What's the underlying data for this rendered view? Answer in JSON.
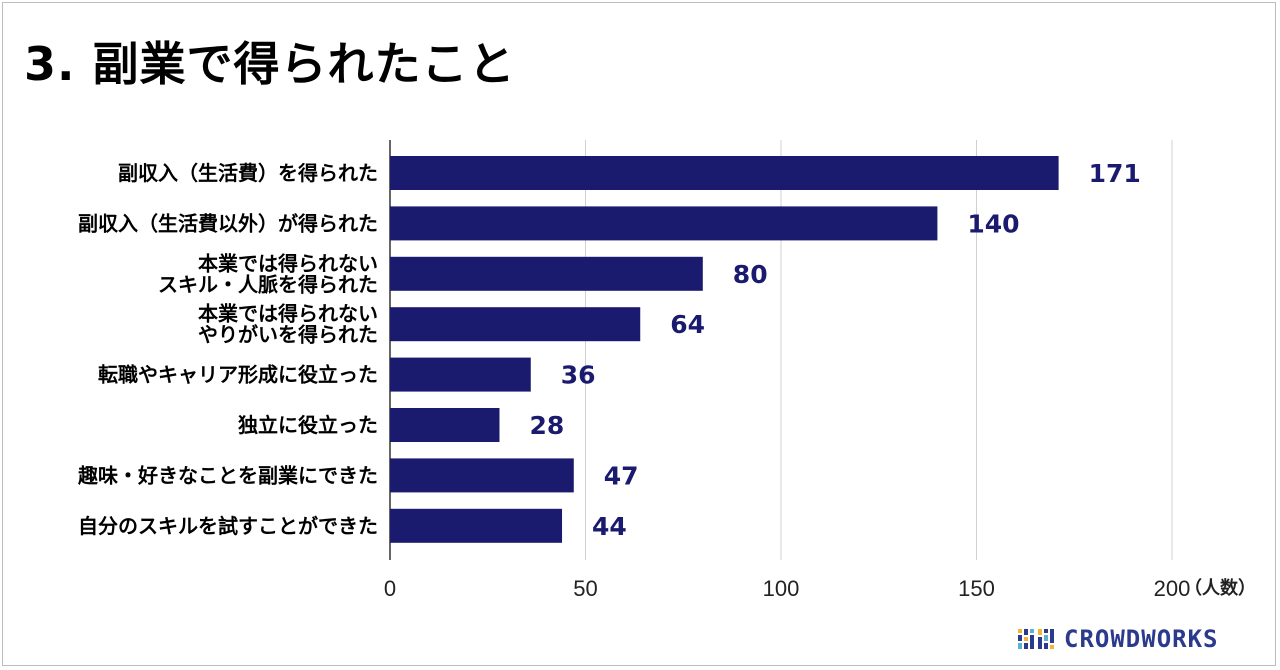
{
  "title": "3. 副業で得られたこと",
  "logo": {
    "text": "CROWDWORKS",
    "text_color": "#2b3a8c"
  },
  "colors": {
    "bar": "#1a1a6e",
    "value_label": "#1a1a6e",
    "grid": "#d0d0d0",
    "axis": "#333333"
  },
  "chart_data": {
    "type": "bar",
    "orientation": "horizontal",
    "categories": [
      [
        "副収入（生活費）を得られた"
      ],
      [
        "副収入（生活費以外）が得られた"
      ],
      [
        "本業では得られない",
        "スキル・人脈を得られた"
      ],
      [
        "本業では得られない",
        "やりがいを得られた"
      ],
      [
        "転職やキャリア形成に役立った"
      ],
      [
        "独立に役立った"
      ],
      [
        "趣味・好きなことを副業にできた"
      ],
      [
        "自分のスキルを試すことができた"
      ]
    ],
    "values": [
      171,
      140,
      80,
      64,
      36,
      28,
      47,
      44
    ],
    "xlim": [
      0,
      200
    ],
    "xticks": [
      0,
      50,
      100,
      150,
      200
    ],
    "xlabel": "（人数）",
    "grid": true,
    "data_labels": true
  }
}
